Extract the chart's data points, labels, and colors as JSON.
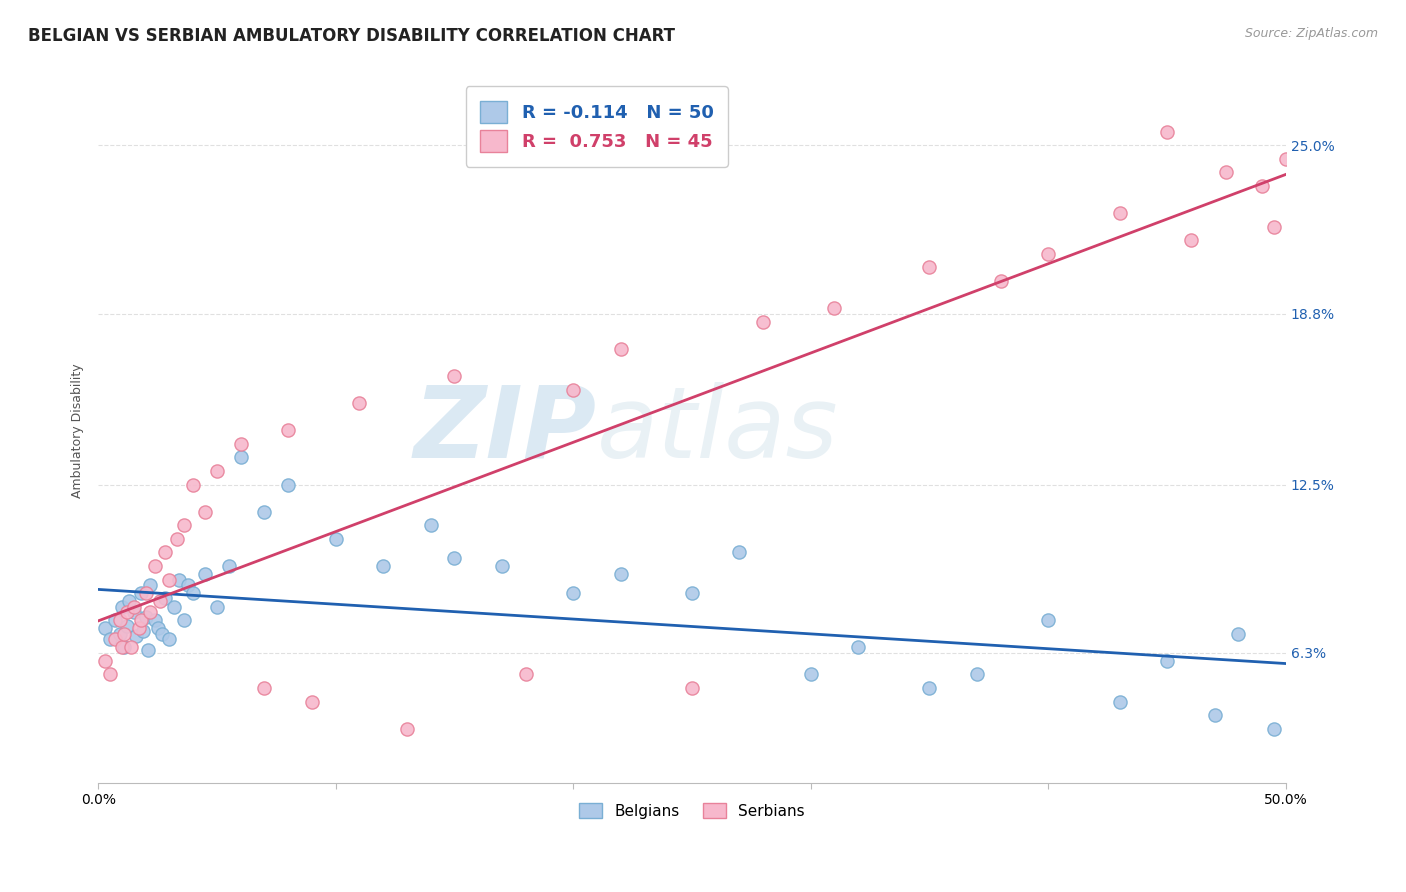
{
  "title": "BELGIAN VS SERBIAN AMBULATORY DISABILITY CORRELATION CHART",
  "source": "Source: ZipAtlas.com",
  "ylabel": "Ambulatory Disability",
  "xlim": [
    0.0,
    50.0
  ],
  "ylim": [
    1.5,
    27.5
  ],
  "yticks": [
    6.3,
    12.5,
    18.8,
    25.0
  ],
  "ytick_labels": [
    "6.3%",
    "12.5%",
    "18.8%",
    "25.0%"
  ],
  "xtick_positions": [
    0.0,
    10.0,
    20.0,
    30.0,
    40.0,
    50.0
  ],
  "xtick_labels": [
    "0.0%",
    "",
    "",
    "",
    "",
    "50.0%"
  ],
  "legend_entry_1": "R = -0.114   N = 50",
  "legend_entry_2": "R =  0.753   N = 45",
  "belgian_color": "#aec9e8",
  "serbian_color": "#f7b8cc",
  "belgian_edge_color": "#7aafd4",
  "serbian_edge_color": "#e8829a",
  "belgian_line_color": "#2060b0",
  "serbian_line_color": "#d0406a",
  "legend_text_color_1": "#2060b0",
  "legend_text_color_2": "#d0406a",
  "background_color": "#ffffff",
  "grid_color": "#e0e0e0",
  "watermark_zip": "ZIP",
  "watermark_atlas": "atlas",
  "title_fontsize": 12,
  "axis_label_fontsize": 9,
  "tick_fontsize": 10,
  "belgians_x": [
    0.3,
    0.5,
    0.7,
    0.9,
    1.0,
    1.1,
    1.2,
    1.3,
    1.5,
    1.6,
    1.8,
    1.9,
    2.0,
    2.1,
    2.2,
    2.4,
    2.5,
    2.7,
    2.8,
    3.0,
    3.2,
    3.4,
    3.6,
    3.8,
    4.0,
    4.5,
    5.0,
    5.5,
    6.0,
    7.0,
    8.0,
    10.0,
    12.0,
    14.0,
    15.0,
    17.0,
    20.0,
    22.0,
    25.0,
    27.0,
    30.0,
    32.0,
    35.0,
    37.0,
    40.0,
    43.0,
    45.0,
    47.0,
    48.0,
    49.5
  ],
  "belgians_y": [
    7.2,
    6.8,
    7.5,
    7.0,
    8.0,
    6.5,
    7.3,
    8.2,
    7.8,
    6.9,
    8.5,
    7.1,
    7.6,
    6.4,
    8.8,
    7.5,
    7.2,
    7.0,
    8.3,
    6.8,
    8.0,
    9.0,
    7.5,
    8.8,
    8.5,
    9.2,
    8.0,
    9.5,
    13.5,
    11.5,
    12.5,
    10.5,
    9.5,
    11.0,
    9.8,
    9.5,
    8.5,
    9.2,
    8.5,
    10.0,
    5.5,
    6.5,
    5.0,
    5.5,
    7.5,
    4.5,
    6.0,
    4.0,
    7.0,
    3.5
  ],
  "serbians_x": [
    0.3,
    0.5,
    0.7,
    0.9,
    1.0,
    1.1,
    1.2,
    1.4,
    1.5,
    1.7,
    1.8,
    2.0,
    2.2,
    2.4,
    2.6,
    2.8,
    3.0,
    3.3,
    3.6,
    4.0,
    4.5,
    5.0,
    6.0,
    7.0,
    8.0,
    9.0,
    11.0,
    13.0,
    15.0,
    18.0,
    20.0,
    22.0,
    25.0,
    28.0,
    31.0,
    35.0,
    38.0,
    40.0,
    43.0,
    45.0,
    46.0,
    47.5,
    49.0,
    49.5,
    50.0
  ],
  "serbians_y": [
    6.0,
    5.5,
    6.8,
    7.5,
    6.5,
    7.0,
    7.8,
    6.5,
    8.0,
    7.2,
    7.5,
    8.5,
    7.8,
    9.5,
    8.2,
    10.0,
    9.0,
    10.5,
    11.0,
    12.5,
    11.5,
    13.0,
    14.0,
    5.0,
    14.5,
    4.5,
    15.5,
    3.5,
    16.5,
    5.5,
    16.0,
    17.5,
    5.0,
    18.5,
    19.0,
    20.5,
    20.0,
    21.0,
    22.5,
    25.5,
    21.5,
    24.0,
    23.5,
    22.0,
    24.5
  ]
}
